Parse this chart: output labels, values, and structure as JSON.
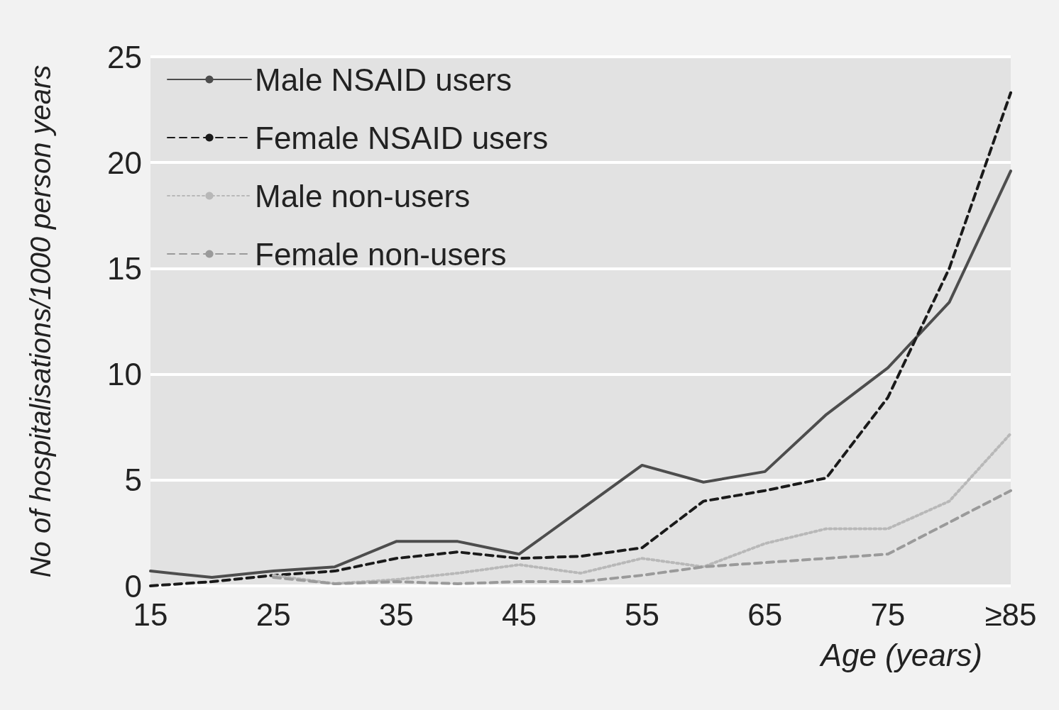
{
  "chart_data": {
    "type": "line",
    "xlabel": "Age (years)",
    "ylabel": "No of hospitalisations/1000 person years",
    "categories": [
      "15",
      null,
      "25",
      null,
      "35",
      null,
      "45",
      null,
      "55",
      null,
      "65",
      null,
      "75",
      null,
      "≥85"
    ],
    "ylim": [
      0,
      25
    ],
    "yticks": [
      0,
      5,
      10,
      15,
      20,
      25
    ],
    "grid": "y",
    "legend": "top left",
    "marker": "none",
    "series": [
      {
        "name": "Male NSAID users",
        "color": "#4d4d4d",
        "line_style": "solid",
        "values": [
          0.7,
          0.4,
          0.7,
          0.9,
          2.1,
          2.1,
          1.5,
          3.6,
          5.7,
          4.9,
          5.4,
          8.1,
          10.3,
          13.4,
          19.6
        ]
      },
      {
        "name": "Female NSAID users",
        "color": "#1a1a1a",
        "line_style": "dashed",
        "values": [
          0,
          0.2,
          0.5,
          0.7,
          1.3,
          1.6,
          1.3,
          1.4,
          1.8,
          4.0,
          4.5,
          5.1,
          8.9,
          15.0,
          23.3
        ]
      },
      {
        "name": "Male non-users",
        "color": "#b8b8b8",
        "line_style": "dotted",
        "values": [
          null,
          null,
          0.5,
          0.1,
          0.3,
          0.6,
          1.0,
          0.6,
          1.3,
          0.9,
          2.0,
          2.7,
          2.7,
          4.0,
          7.2
        ]
      },
      {
        "name": "Female non-users",
        "color": "#9a9a9a",
        "line_style": "dashed",
        "values": [
          null,
          null,
          0.4,
          0.1,
          0.2,
          0.1,
          0.2,
          0.2,
          0.5,
          0.9,
          1.1,
          1.3,
          1.5,
          3.0,
          4.5
        ]
      }
    ]
  }
}
